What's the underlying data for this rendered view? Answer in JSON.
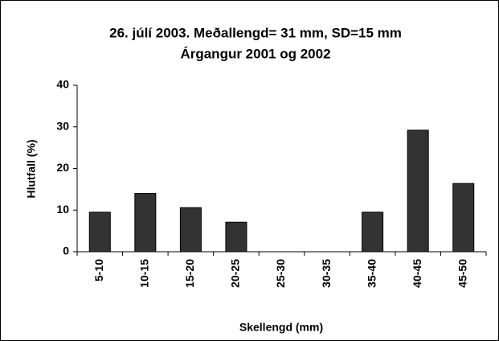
{
  "chart_data": {
    "type": "bar",
    "title": "26. júlí 2003. Meðallengd= 31 mm, SD=15 mm",
    "subtitle": "Árgangur 2001 og 2002",
    "xlabel": "Skellengd (mm)",
    "ylabel": "Hlutfall (%)",
    "categories": [
      "5-10",
      "10-15",
      "15-20",
      "20-25",
      "25-30",
      "30-35",
      "35-40",
      "40-45",
      "45-50"
    ],
    "values": [
      9.5,
      14,
      10.6,
      7.1,
      0,
      0,
      9.5,
      29.2,
      16.4
    ],
    "color": "#333333",
    "ylim": [
      0,
      40
    ],
    "yticks": [
      0,
      10,
      20,
      30,
      40
    ],
    "grid": false
  }
}
